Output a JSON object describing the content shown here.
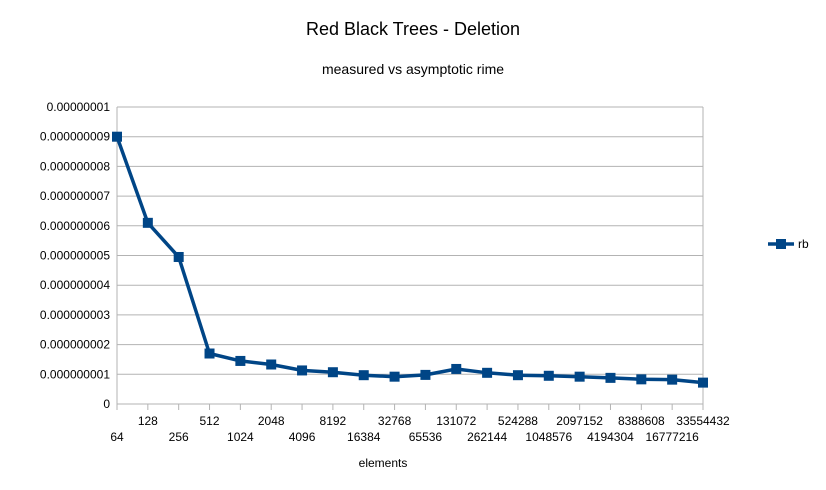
{
  "chart_data": {
    "type": "line",
    "title": "Red Black Trees - Deletion",
    "subtitle": "measured vs asymptotic rime",
    "xlabel": "elements",
    "ylabel": "",
    "categories": [
      "64",
      "128",
      "256",
      "512",
      "1024",
      "2048",
      "4096",
      "8192",
      "16384",
      "32768",
      "65536",
      "131072",
      "262144",
      "524288",
      "1048576",
      "2097152",
      "4194304",
      "8388608",
      "16777216",
      "33554432"
    ],
    "series": [
      {
        "name": "rb",
        "color": "#004586",
        "values": [
          9e-09,
          6.1e-09,
          4.95e-09,
          1.7e-09,
          1.45e-09,
          1.33e-09,
          1.13e-09,
          1.07e-09,
          9.7e-10,
          9.2e-10,
          9.8e-10,
          1.18e-09,
          1.05e-09,
          9.7e-10,
          9.5e-10,
          9.2e-10,
          8.8e-10,
          8.3e-10,
          8.2e-10,
          7.2e-10
        ]
      }
    ],
    "yticks": [
      "0",
      "0.000000001",
      "0.000000002",
      "0.000000003",
      "0.000000004",
      "0.000000005",
      "0.000000006",
      "0.000000007",
      "0.000000008",
      "0.000000009",
      "0.00000001"
    ],
    "ylim": [
      0,
      1e-08
    ],
    "grid": true,
    "legend_position": "right"
  }
}
